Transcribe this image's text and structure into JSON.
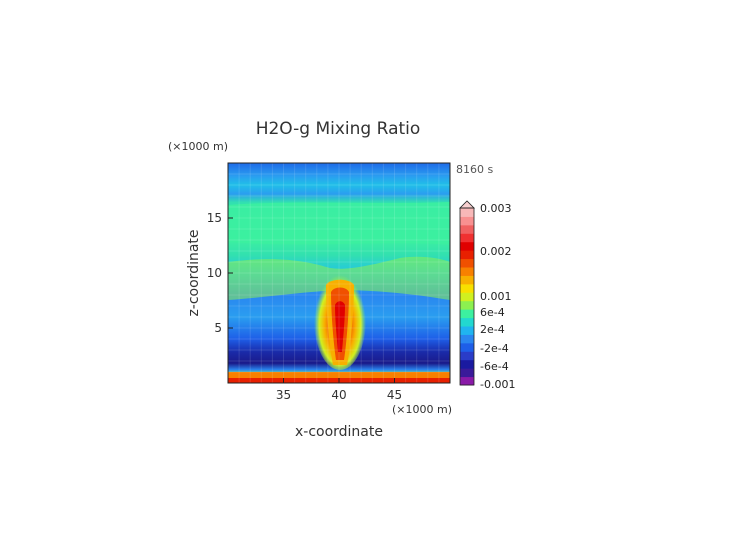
{
  "chart_data": {
    "type": "heatmap",
    "title": "H2O-g Mixing Ratio",
    "time_label": "8160 s",
    "xlabel": "x-coordinate",
    "ylabel": "z-coordinate",
    "x_unit": "(×1000 m)",
    "y_unit": "(×1000 m)",
    "xlim": [
      30,
      50
    ],
    "ylim": [
      0,
      20
    ],
    "x_ticks": [
      "35",
      "40",
      "45"
    ],
    "y_ticks": [
      "5",
      "10",
      "15"
    ],
    "colorbar": {
      "labels": [
        "0.003",
        "0.002",
        "0.001",
        "6e-4",
        "2e-4",
        "-2e-4",
        "-6e-4",
        "-0.001"
      ],
      "colors": [
        "#8a1aa8",
        "#3a1a9a",
        "#1a1aa0",
        "#2a3cc8",
        "#1e5ee8",
        "#2a86f0",
        "#20b4f0",
        "#22d8d0",
        "#3cf0a0",
        "#8cf050",
        "#d0f020",
        "#f8e000",
        "#f8b000",
        "#f88000",
        "#f05000",
        "#e82000",
        "#e00000",
        "#f03030",
        "#f06060",
        "#f89090",
        "#f8b8b8"
      ]
    }
  }
}
